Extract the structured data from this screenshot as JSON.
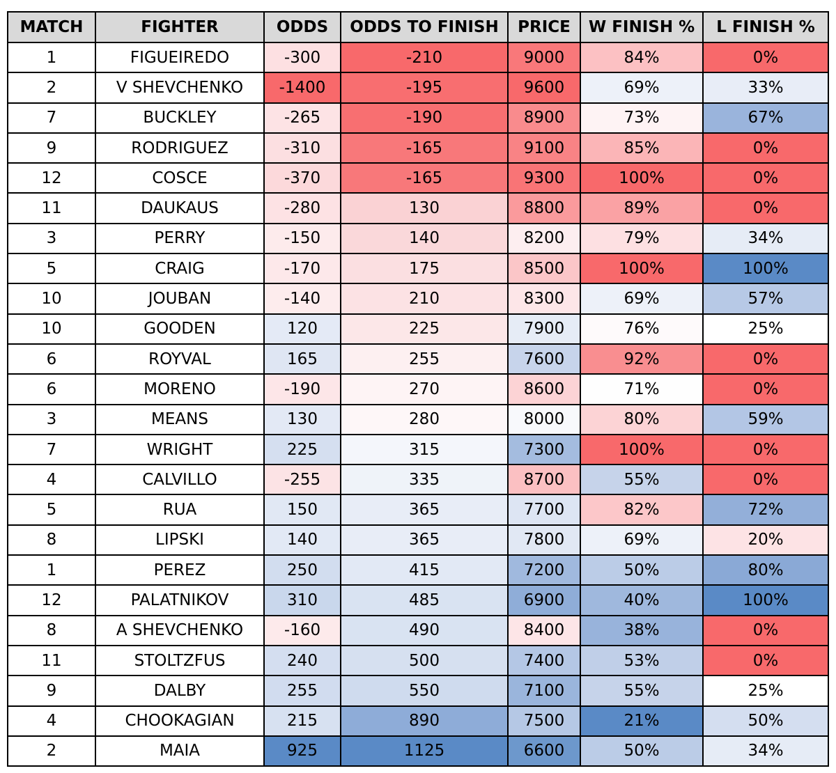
{
  "headers": [
    "MATCH",
    "FIGHTER",
    "ODDS",
    "ODDS TO FINISH",
    "PRICE",
    "W FINISH %",
    "L FINISH %"
  ],
  "rows": [
    {
      "match": "1",
      "fighter": "FIGUEIREDO",
      "odds": "-300",
      "odds_to_finish": "-210",
      "price": "9000",
      "w_finish": "84%",
      "l_finish": "0%"
    },
    {
      "match": "2",
      "fighter": "V SHEVCHENKO",
      "odds": "-1400",
      "odds_to_finish": "-195",
      "price": "9600",
      "w_finish": "69%",
      "l_finish": "33%"
    },
    {
      "match": "7",
      "fighter": "BUCKLEY",
      "odds": "-265",
      "odds_to_finish": "-190",
      "price": "8900",
      "w_finish": "73%",
      "l_finish": "67%"
    },
    {
      "match": "9",
      "fighter": "RODRIGUEZ",
      "odds": "-310",
      "odds_to_finish": "-165",
      "price": "9100",
      "w_finish": "85%",
      "l_finish": "0%"
    },
    {
      "match": "12",
      "fighter": "COSCE",
      "odds": "-370",
      "odds_to_finish": "-165",
      "price": "9300",
      "w_finish": "100%",
      "l_finish": "0%"
    },
    {
      "match": "11",
      "fighter": "DAUKAUS",
      "odds": "-280",
      "odds_to_finish": "130",
      "price": "8800",
      "w_finish": "89%",
      "l_finish": "0%"
    },
    {
      "match": "3",
      "fighter": "PERRY",
      "odds": "-150",
      "odds_to_finish": "140",
      "price": "8200",
      "w_finish": "79%",
      "l_finish": "34%"
    },
    {
      "match": "5",
      "fighter": "CRAIG",
      "odds": "-170",
      "odds_to_finish": "175",
      "price": "8500",
      "w_finish": "100%",
      "l_finish": "100%"
    },
    {
      "match": "10",
      "fighter": "JOUBAN",
      "odds": "-140",
      "odds_to_finish": "210",
      "price": "8300",
      "w_finish": "69%",
      "l_finish": "57%"
    },
    {
      "match": "10",
      "fighter": "GOODEN",
      "odds": "120",
      "odds_to_finish": "225",
      "price": "7900",
      "w_finish": "76%",
      "l_finish": "25%"
    },
    {
      "match": "6",
      "fighter": "ROYVAL",
      "odds": "165",
      "odds_to_finish": "255",
      "price": "7600",
      "w_finish": "92%",
      "l_finish": "0%"
    },
    {
      "match": "6",
      "fighter": "MORENO",
      "odds": "-190",
      "odds_to_finish": "270",
      "price": "8600",
      "w_finish": "71%",
      "l_finish": "0%"
    },
    {
      "match": "3",
      "fighter": "MEANS",
      "odds": "130",
      "odds_to_finish": "280",
      "price": "8000",
      "w_finish": "80%",
      "l_finish": "59%"
    },
    {
      "match": "7",
      "fighter": "WRIGHT",
      "odds": "225",
      "odds_to_finish": "315",
      "price": "7300",
      "w_finish": "100%",
      "l_finish": "0%"
    },
    {
      "match": "4",
      "fighter": "CALVILLO",
      "odds": "-255",
      "odds_to_finish": "335",
      "price": "8700",
      "w_finish": "55%",
      "l_finish": "0%"
    },
    {
      "match": "5",
      "fighter": "RUA",
      "odds": "150",
      "odds_to_finish": "365",
      "price": "7700",
      "w_finish": "82%",
      "l_finish": "72%"
    },
    {
      "match": "8",
      "fighter": "LIPSKI",
      "odds": "140",
      "odds_to_finish": "365",
      "price": "7800",
      "w_finish": "69%",
      "l_finish": "20%"
    },
    {
      "match": "1",
      "fighter": "PEREZ",
      "odds": "250",
      "odds_to_finish": "415",
      "price": "7200",
      "w_finish": "50%",
      "l_finish": "80%"
    },
    {
      "match": "12",
      "fighter": "PALATNIKOV",
      "odds": "310",
      "odds_to_finish": "485",
      "price": "6900",
      "w_finish": "40%",
      "l_finish": "100%"
    },
    {
      "match": "8",
      "fighter": "A SHEVCHENKO",
      "odds": "-160",
      "odds_to_finish": "490",
      "price": "8400",
      "w_finish": "38%",
      "l_finish": "0%"
    },
    {
      "match": "11",
      "fighter": "STOLTZFUS",
      "odds": "240",
      "odds_to_finish": "500",
      "price": "7400",
      "w_finish": "53%",
      "l_finish": "0%"
    },
    {
      "match": "9",
      "fighter": "DALBY",
      "odds": "255",
      "odds_to_finish": "550",
      "price": "7100",
      "w_finish": "55%",
      "l_finish": "25%"
    },
    {
      "match": "4",
      "fighter": "CHOOKAGIAN",
      "odds": "215",
      "odds_to_finish": "890",
      "price": "7500",
      "w_finish": "21%",
      "l_finish": "50%"
    },
    {
      "match": "2",
      "fighter": "MAIA",
      "odds": "925",
      "odds_to_finish": "1125",
      "price": "6600",
      "w_finish": "50%",
      "l_finish": "34%"
    }
  ],
  "cell_colors": [
    [
      "#ffffff",
      "#ffffff",
      "#fde0e2",
      "#f8696b",
      "#f9787a",
      "#fcc1c3",
      "#f8696b"
    ],
    [
      "#ffffff",
      "#ffffff",
      "#f8696b",
      "#f86e70",
      "#f8696b",
      "#edf1f9",
      "#e8edf7"
    ],
    [
      "#ffffff",
      "#ffffff",
      "#fde3e5",
      "#f86f71",
      "#f98b8d",
      "#fef3f4",
      "#9ab4dc"
    ],
    [
      "#ffffff",
      "#ffffff",
      "#fcdfe1",
      "#f8787a",
      "#f98385",
      "#fbb5b7",
      "#f8696b"
    ],
    [
      "#ffffff",
      "#ffffff",
      "#fcd9db",
      "#f8787a",
      "#f97476",
      "#f8696b",
      "#f8696b"
    ],
    [
      "#ffffff",
      "#ffffff",
      "#fde2e4",
      "#fad2d4",
      "#fa9a9c",
      "#faa2a4",
      "#f8696b"
    ],
    [
      "#ffffff",
      "#ffffff",
      "#fdebec",
      "#fad8da",
      "#fdeef0",
      "#fde0e2",
      "#e6ecf6"
    ],
    [
      "#ffffff",
      "#ffffff",
      "#fde8ea",
      "#fbdfe1",
      "#fbc6c8",
      "#f8696b",
      "#5a8ac6"
    ],
    [
      "#ffffff",
      "#ffffff",
      "#fdeced",
      "#fce2e4",
      "#fde6e8",
      "#edf1f9",
      "#b7c9e6"
    ],
    [
      "#ffffff",
      "#ffffff",
      "#e4eaf6",
      "#fce7e8",
      "#e6ecf6",
      "#fefafb",
      "#ffffff"
    ],
    [
      "#ffffff",
      "#ffffff",
      "#dfe6f3",
      "#fdf0f1",
      "#c7d4eb",
      "#f98e90",
      "#f8696b"
    ],
    [
      "#ffffff",
      "#ffffff",
      "#fde6e8",
      "#fef4f5",
      "#fcd3d5",
      "#fefefe",
      "#f8696b"
    ],
    [
      "#ffffff",
      "#ffffff",
      "#e3e9f5",
      "#fef7f8",
      "#f8f9fc",
      "#fcd3d5",
      "#b3c6e5"
    ],
    [
      "#ffffff",
      "#ffffff",
      "#d5dff0",
      "#f4f6fb",
      "#a4bcdf",
      "#f8696b",
      "#f8696b"
    ],
    [
      "#ffffff",
      "#ffffff",
      "#fce3e5",
      "#eff3f9",
      "#fbc0c2",
      "#c6d3ea",
      "#f8696b"
    ],
    [
      "#ffffff",
      "#ffffff",
      "#e1e8f4",
      "#e8edf7",
      "#dde5f3",
      "#fcc7c9",
      "#93afd9"
    ],
    [
      "#ffffff",
      "#ffffff",
      "#e2e9f5",
      "#e8edf7",
      "#e1e8f4",
      "#edf1f9",
      "#fde3e5"
    ],
    [
      "#ffffff",
      "#ffffff",
      "#d2ddef",
      "#e2e9f5",
      "#a0b9de",
      "#bbcce7",
      "#8aa9d6"
    ],
    [
      "#ffffff",
      "#ffffff",
      "#c9d7ec",
      "#d9e3f2",
      "#8fadd8",
      "#9fb8dd",
      "#5a8ac6"
    ],
    [
      "#ffffff",
      "#ffffff",
      "#fdeaeb",
      "#d9e3f2",
      "#fde5e7",
      "#98b3db",
      "#f8696b"
    ],
    [
      "#ffffff",
      "#ffffff",
      "#d4def0",
      "#d6e0f0",
      "#b4c7e5",
      "#c0cfe8",
      "#f8696b"
    ],
    [
      "#ffffff",
      "#ffffff",
      "#d1dcef",
      "#cfdbee",
      "#9ab5dc",
      "#c6d3ea",
      "#ffffff"
    ],
    [
      "#ffffff",
      "#ffffff",
      "#d7e1f1",
      "#8eacd8",
      "#b5c8e5",
      "#5a8ac6",
      "#d4def0"
    ],
    [
      "#ffffff",
      "#ffffff",
      "#5a8ac6",
      "#5a8ac6",
      "#6d98cc",
      "#bbcce7",
      "#e6ecf6"
    ]
  ]
}
